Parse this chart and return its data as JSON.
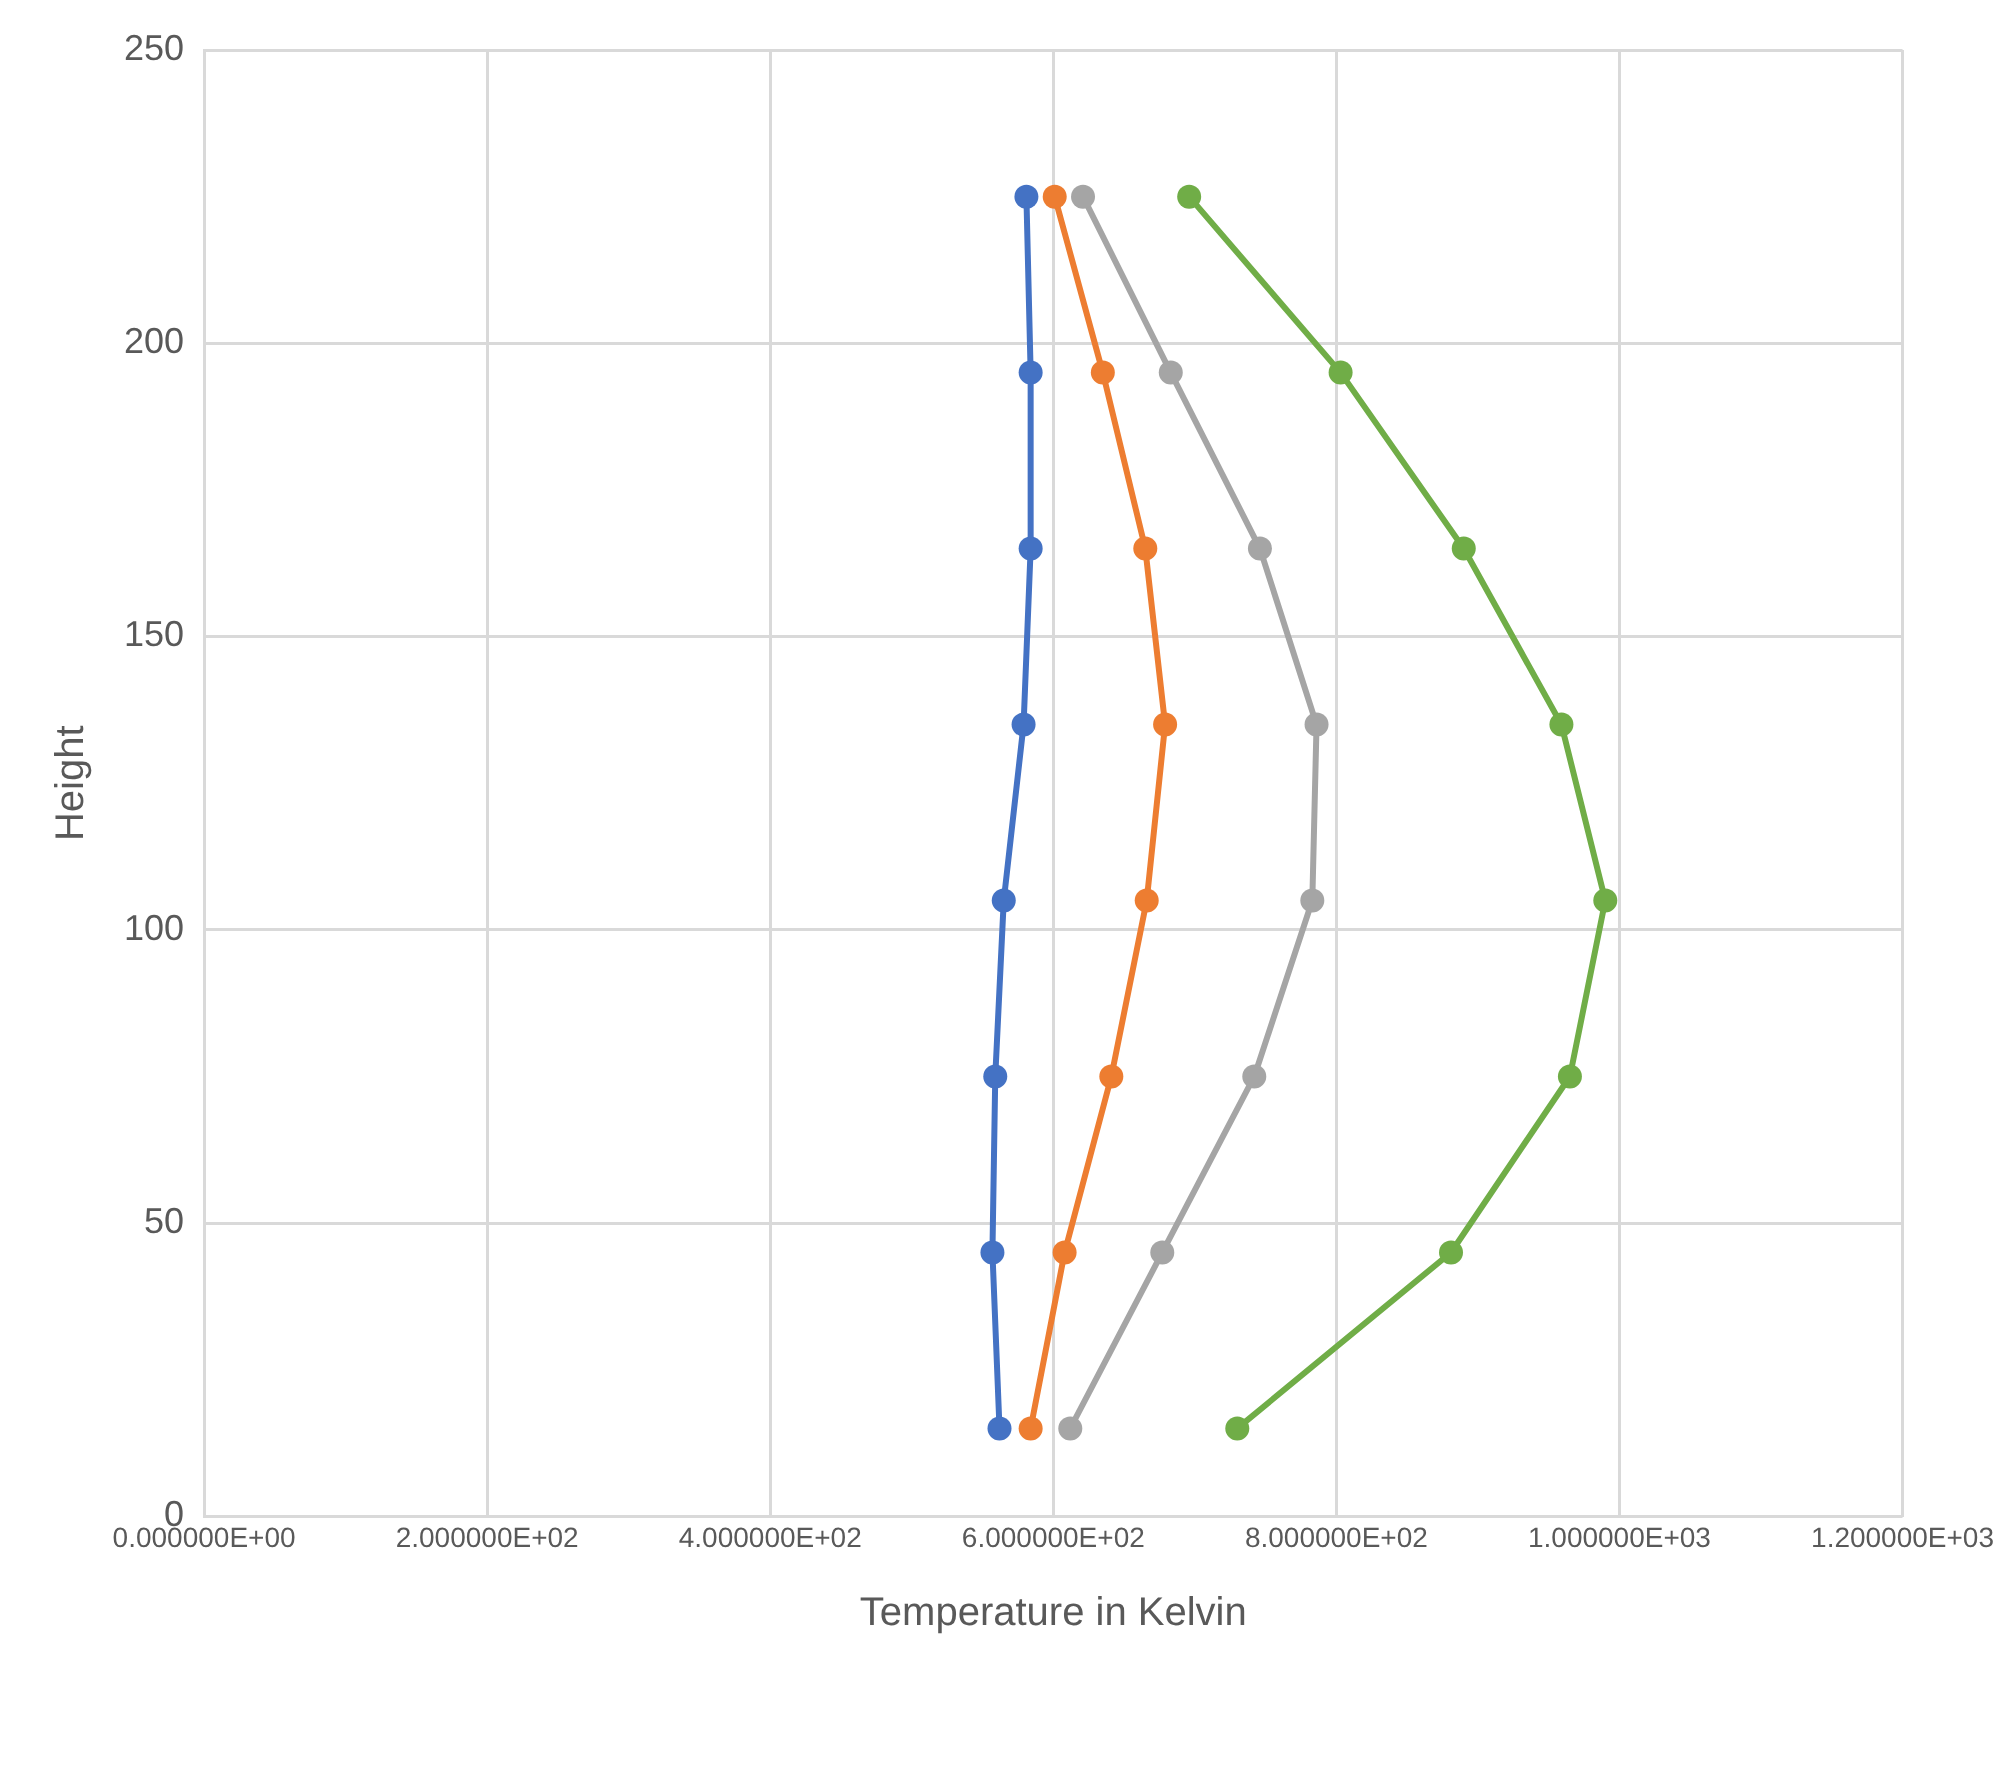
{
  "chart_data": {
    "type": "line",
    "xlabel": "Temperature in Kelvin",
    "ylabel": "Height",
    "xlim": [
      0,
      1200
    ],
    "ylim": [
      0,
      250
    ],
    "xticks": [
      {
        "value": 0,
        "label": "0.000000E+00"
      },
      {
        "value": 200,
        "label": "2.000000E+02"
      },
      {
        "value": 400,
        "label": "4.000000E+02"
      },
      {
        "value": 600,
        "label": "6.000000E+02"
      },
      {
        "value": 800,
        "label": "8.000000E+02"
      },
      {
        "value": 1000,
        "label": "1.000000E+03"
      },
      {
        "value": 1200,
        "label": "1.200000E+03"
      }
    ],
    "yticks": [
      0,
      50,
      100,
      150,
      200,
      250
    ],
    "grid": true,
    "legend": false,
    "marker": "circle",
    "line_style": "solid",
    "series": [
      {
        "color": "#4472c4",
        "x": [
          562,
          557,
          559,
          565,
          579,
          584,
          584,
          581
        ],
        "values": [
          15,
          45,
          75,
          105,
          135,
          165,
          195,
          225
        ]
      },
      {
        "color": "#ed7d31",
        "x": [
          584,
          608,
          641,
          666,
          679,
          665,
          635,
          601
        ],
        "values": [
          15,
          45,
          75,
          105,
          135,
          165,
          195,
          225
        ]
      },
      {
        "color": "#a5a5a5",
        "x": [
          612,
          677,
          742,
          783,
          786,
          746,
          683,
          621
        ],
        "values": [
          15,
          45,
          75,
          105,
          135,
          165,
          195,
          225
        ]
      },
      {
        "color": "#70ad47",
        "x": [
          730,
          881,
          965,
          990,
          959,
          890,
          803,
          696
        ],
        "values": [
          15,
          45,
          75,
          105,
          135,
          165,
          195,
          225
        ]
      }
    ]
  }
}
